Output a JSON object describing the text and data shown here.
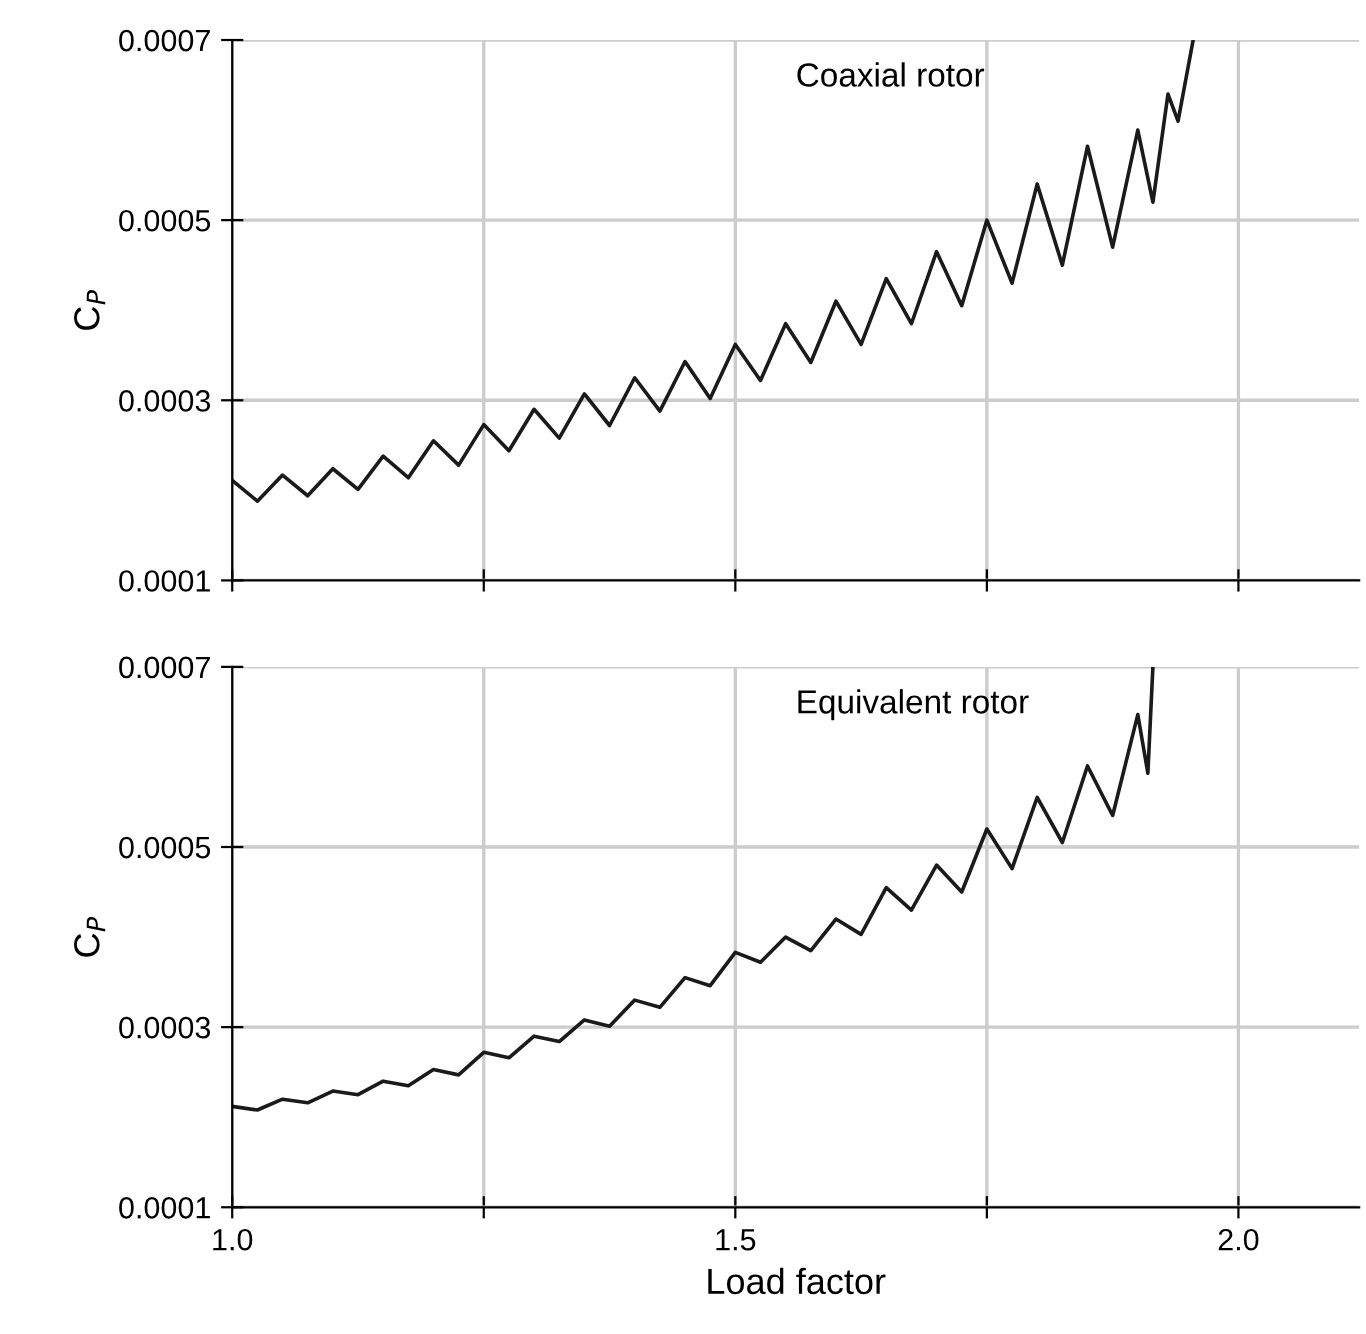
{
  "chart_data": [
    {
      "type": "line",
      "ylabel": "C$_{P}$",
      "annotations": [
        "Coaxial rotor"
      ],
      "tick_labels": "y",
      "grid": true,
      "marker": "none",
      "line_style": "solid",
      "xlim": [
        1.0,
        2.12
      ],
      "ylim": [
        0.0001,
        0.0007
      ],
      "xticks": [
        {
          "value": 1.0,
          "label": null
        },
        {
          "value": 1.25,
          "label": null
        },
        {
          "value": 1.5,
          "label": null
        },
        {
          "value": 1.75,
          "label": null
        },
        {
          "value": 2.0,
          "label": null
        }
      ],
      "yticks": [
        0.0001,
        0.0003,
        0.0005,
        0.0007
      ],
      "series": [
        {
          "color": "#1a1a1a",
          "x": [
            1.0,
            1.025,
            1.05,
            1.075,
            1.1,
            1.125,
            1.15,
            1.175,
            1.2,
            1.225,
            1.25,
            1.275,
            1.3,
            1.325,
            1.35,
            1.375,
            1.4,
            1.425,
            1.45,
            1.475,
            1.5,
            1.525,
            1.55,
            1.575,
            1.6,
            1.625,
            1.65,
            1.675,
            1.7,
            1.725,
            1.75,
            1.775,
            1.8,
            1.825,
            1.85,
            1.875,
            1.9,
            1.915,
            1.93,
            1.94,
            1.955
          ],
          "values": [
            0.000211,
            0.000188,
            0.000217,
            0.000194,
            0.000224,
            0.000201,
            0.000238,
            0.000214,
            0.000255,
            0.000228,
            0.000273,
            0.000244,
            0.00029,
            0.000258,
            0.000307,
            0.000272,
            0.000325,
            0.000288,
            0.000343,
            0.000302,
            0.000362,
            0.000322,
            0.000385,
            0.000342,
            0.00041,
            0.000362,
            0.000435,
            0.000385,
            0.000465,
            0.000405,
            0.0005,
            0.00043,
            0.00054,
            0.00045,
            0.000582,
            0.00047,
            0.0006,
            0.00052,
            0.00064,
            0.00061,
            0.0007
          ]
        }
      ]
    },
    {
      "type": "line",
      "ylabel": "C$_{P}$",
      "xlabel": "Load factor",
      "annotations": [
        "Equivalent rotor"
      ],
      "grid": true,
      "marker": "none",
      "line_style": "solid",
      "xlim": [
        1.0,
        2.12
      ],
      "ylim": [
        0.0001,
        0.0007
      ],
      "xticks": [
        {
          "value": 1.0,
          "label": "1.0"
        },
        {
          "value": 1.25,
          "label": null
        },
        {
          "value": 1.5,
          "label": "1.5"
        },
        {
          "value": 1.75,
          "label": null
        },
        {
          "value": 2.0,
          "label": "2.0"
        }
      ],
      "yticks": [
        0.0001,
        0.0003,
        0.0005,
        0.0007
      ],
      "series": [
        {
          "color": "#1a1a1a",
          "x": [
            1.0,
            1.025,
            1.05,
            1.075,
            1.1,
            1.125,
            1.15,
            1.175,
            1.2,
            1.225,
            1.25,
            1.275,
            1.3,
            1.325,
            1.35,
            1.375,
            1.4,
            1.425,
            1.45,
            1.475,
            1.5,
            1.525,
            1.55,
            1.575,
            1.6,
            1.625,
            1.65,
            1.675,
            1.7,
            1.725,
            1.75,
            1.775,
            1.8,
            1.825,
            1.85,
            1.875,
            1.9,
            1.91,
            1.915
          ],
          "values": [
            0.000212,
            0.000208,
            0.00022,
            0.000216,
            0.000229,
            0.000225,
            0.00024,
            0.000235,
            0.000253,
            0.000247,
            0.000272,
            0.000266,
            0.00029,
            0.000284,
            0.000308,
            0.000301,
            0.00033,
            0.000322,
            0.000355,
            0.000346,
            0.000383,
            0.000372,
            0.0004,
            0.000385,
            0.00042,
            0.000403,
            0.000455,
            0.00043,
            0.00048,
            0.00045,
            0.00052,
            0.000476,
            0.000555,
            0.000505,
            0.00059,
            0.000535,
            0.000647,
            0.000582,
            0.0007
          ]
        }
      ]
    }
  ]
}
